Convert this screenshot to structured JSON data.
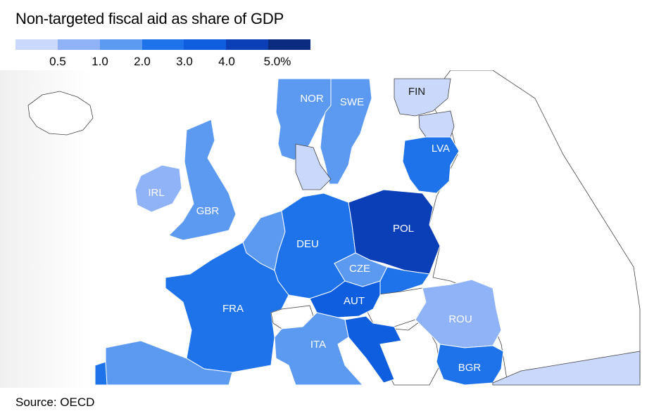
{
  "title": "Non-targeted fiscal aid as share of GDP",
  "legend": {
    "colors": [
      "#c9d8fb",
      "#8fb3f6",
      "#5c99f1",
      "#1f73ea",
      "#0f5ee0",
      "#0b3fb8",
      "#0a2b80"
    ],
    "labels": [
      "0.5",
      "1.0",
      "2.0",
      "3.0",
      "4.0",
      "5.0%"
    ]
  },
  "countries": {
    "NOR": {
      "label": "NOR",
      "color": "#5c99f1"
    },
    "SWE": {
      "label": "SWE",
      "color": "#5c99f1"
    },
    "FIN": {
      "label": "FIN",
      "color": "#c9d8fb"
    },
    "LVA": {
      "label": "LVA",
      "color": "#1f73ea"
    },
    "IRL": {
      "label": "IRL",
      "color": "#8fb3f6"
    },
    "GBR": {
      "label": "GBR",
      "color": "#5c99f1"
    },
    "DEU": {
      "label": "DEU",
      "color": "#1f73ea"
    },
    "POL": {
      "label": "POL",
      "color": "#0b3fb8"
    },
    "CZE": {
      "label": "CZE",
      "color": "#5c99f1"
    },
    "AUT": {
      "label": "AUT",
      "color": "#0f5ee0"
    },
    "FRA": {
      "label": "FRA",
      "color": "#1f73ea"
    },
    "ITA": {
      "label": "ITA",
      "color": "#5c99f1"
    },
    "ROU": {
      "label": "ROU",
      "color": "#8fb3f6"
    },
    "BGR": {
      "label": "BGR",
      "color": "#1f73ea"
    }
  },
  "source": "Source: OECD"
}
